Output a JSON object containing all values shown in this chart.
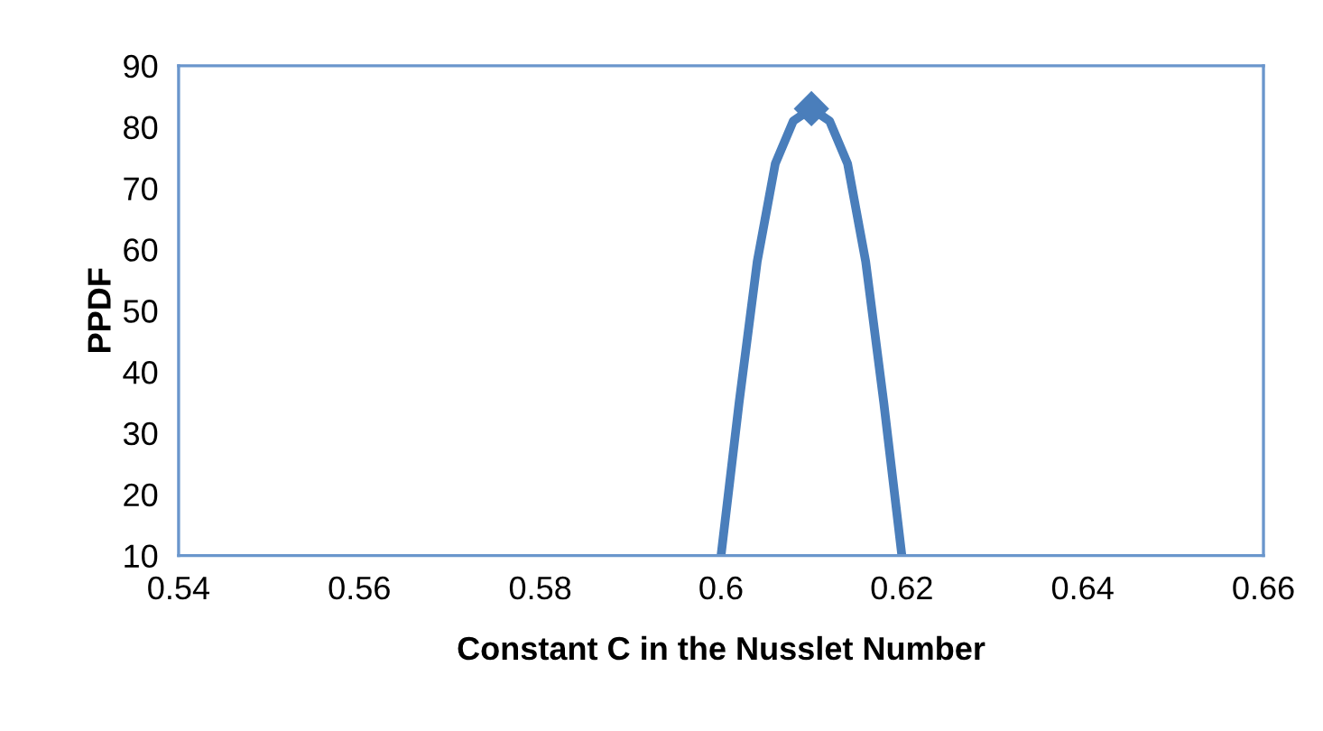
{
  "chart_data": {
    "type": "line",
    "xlabel": "Constant C in the Nusslet Number",
    "ylabel": "PPDF",
    "x": [
      0.6,
      0.602,
      0.604,
      0.606,
      0.608,
      0.61,
      0.612,
      0.614,
      0.616,
      0.618,
      0.62
    ],
    "series": [
      {
        "color": "#4a7ebb",
        "values": [
          10,
          35,
          58,
          74,
          81,
          83,
          81,
          74,
          58,
          35,
          10
        ]
      },
      {
        "type": "scatter",
        "color": "#4a7ebb",
        "x": [
          0.61
        ],
        "values": [
          83
        ],
        "marker": "diamond"
      }
    ],
    "line_style": "solid",
    "grid": false,
    "legend": false,
    "xlim": [
      0.54,
      0.66
    ],
    "xticks": [
      0.54,
      0.56,
      0.58,
      0.6,
      0.62,
      0.64,
      0.66
    ],
    "ylim": [
      10,
      90
    ],
    "yticks": [
      10,
      20,
      30,
      40,
      50,
      60,
      70,
      80,
      90
    ]
  }
}
